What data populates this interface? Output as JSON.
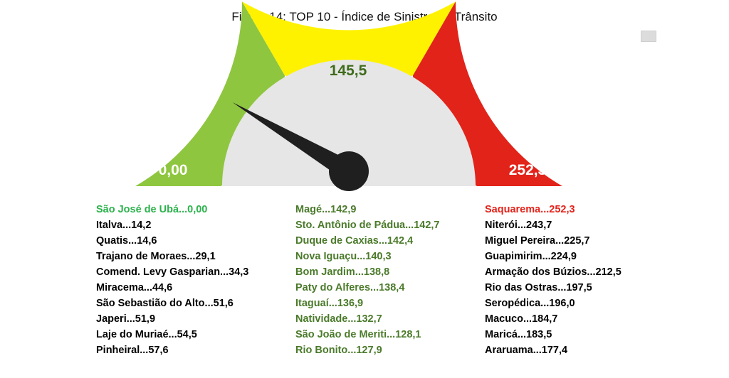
{
  "title": "Figura 14: TOP 10 - Índice de Sinistro no Trânsito",
  "gauge": {
    "min_label": "0,00",
    "mid_label": "145,5",
    "max_label": "252,3",
    "min_value": 0,
    "max_value": 252.3,
    "needle_value": 43,
    "colors": {
      "green": "#8ec63f",
      "yellow": "#fff200",
      "red": "#e2231a",
      "inner": "#e6e6e6",
      "needle": "#1f1f1f"
    }
  },
  "columns": {
    "left": [
      {
        "text": "São José de Ubá...0,00",
        "color": "#2bb24c"
      },
      {
        "text": "Italva...14,2",
        "color": "#000000"
      },
      {
        "text": "Quatis...14,6",
        "color": "#000000"
      },
      {
        "text": "Trajano de Moraes...29,1",
        "color": "#000000"
      },
      {
        "text": "Comend. Levy Gasparian...34,3",
        "color": "#000000"
      },
      {
        "text": "Miracema...44,6",
        "color": "#000000"
      },
      {
        "text": "São Sebastião do Alto...51,6",
        "color": "#000000"
      },
      {
        "text": "Japeri...51,9",
        "color": "#000000"
      },
      {
        "text": "Laje do Muriaé...54,5",
        "color": "#000000"
      },
      {
        "text": "Pinheiral...57,6",
        "color": "#000000"
      }
    ],
    "middle": [
      {
        "text": "Magé...142,9",
        "color": "#4a7a2a"
      },
      {
        "text": "Sto. Antônio de Pádua...142,7",
        "color": "#4a7a2a"
      },
      {
        "text": "Duque de Caxias...142,4",
        "color": "#4a7a2a"
      },
      {
        "text": "Nova Iguaçu...140,3",
        "color": "#4a7a2a"
      },
      {
        "text": "Bom Jardim...138,8",
        "color": "#4a7a2a"
      },
      {
        "text": "Paty do Alferes...138,4",
        "color": "#4a7a2a"
      },
      {
        "text": "Itaguaí...136,9",
        "color": "#4a7a2a"
      },
      {
        "text": "Natividade...132,7",
        "color": "#4a7a2a"
      },
      {
        "text": "São João de Meriti...128,1",
        "color": "#4a7a2a"
      },
      {
        "text": "Rio Bonito...127,9",
        "color": "#4a7a2a"
      }
    ],
    "right": [
      {
        "text": "Saquarema...252,3",
        "color": "#e2231a"
      },
      {
        "text": "Niterói...243,7",
        "color": "#000000"
      },
      {
        "text": "Miguel Pereira...225,7",
        "color": "#000000"
      },
      {
        "text": "Guapimirim...224,9",
        "color": "#000000"
      },
      {
        "text": "Armação dos Búzios...212,5",
        "color": "#000000"
      },
      {
        "text": "Rio das Ostras...197,5",
        "color": "#000000"
      },
      {
        "text": "Seropédica...196,0",
        "color": "#000000"
      },
      {
        "text": "Macuco...184,7",
        "color": "#000000"
      },
      {
        "text": "Maricá...183,5",
        "color": "#000000"
      },
      {
        "text": "Araruama...177,4",
        "color": "#000000"
      }
    ]
  }
}
